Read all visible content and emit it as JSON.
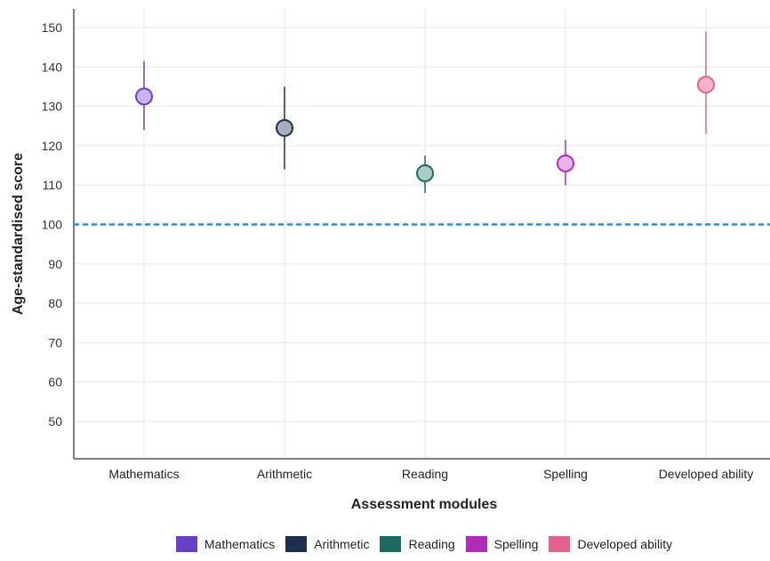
{
  "chart_data": {
    "type": "scatter",
    "xlabel": "Assessment modules",
    "ylabel": "Age-standardised score",
    "ylim": [
      40,
      155
    ],
    "yticks": [
      50,
      60,
      70,
      80,
      90,
      100,
      110,
      120,
      130,
      140,
      150
    ],
    "reference_line": {
      "y": 100,
      "style": "dashed",
      "color": "#2a8fd0"
    },
    "grid": true,
    "legend_position": "bottom",
    "categories": [
      "Mathematics",
      "Arithmetic",
      "Reading",
      "Spelling",
      "Developed ability"
    ],
    "series": [
      {
        "name": "Mathematics",
        "value": 132.5,
        "low": 124,
        "high": 141.5,
        "color": "#6a3fc8",
        "fill": "#c9b3ee"
      },
      {
        "name": "Arithmetic",
        "value": 124.5,
        "low": 114,
        "high": 135,
        "color": "#1e3050",
        "fill": "#a7b0bc"
      },
      {
        "name": "Reading",
        "value": 113,
        "low": 108,
        "high": 117.5,
        "color": "#1d6a62",
        "fill": "#a8cdc8"
      },
      {
        "name": "Spelling",
        "value": 115.5,
        "low": 110,
        "high": 121.5,
        "color": "#b02cb8",
        "fill": "#e9b3ea"
      },
      {
        "name": "Developed ability",
        "value": 135.5,
        "low": 123,
        "high": 149,
        "color": "#e5628e",
        "fill": "#f6b4c8"
      }
    ]
  }
}
